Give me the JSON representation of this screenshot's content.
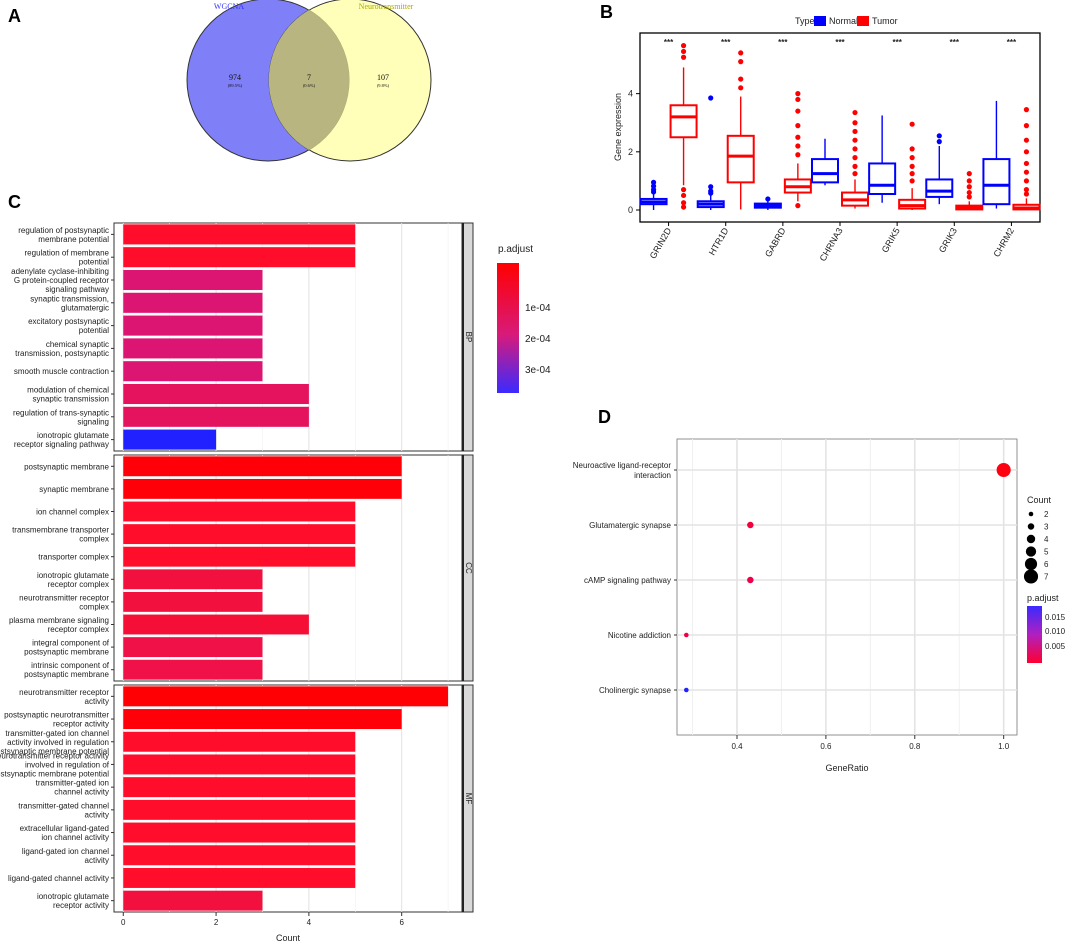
{
  "panels": {
    "A": "A",
    "B": "B",
    "C": "C",
    "D": "D"
  },
  "colors": {
    "venn_left": "#7f7ff7",
    "venn_right": "#ffff80",
    "venn_overlap": "#b8b580",
    "normal": "#0000ff",
    "tumor": "#ff0000"
  },
  "chart_data": [
    {
      "id": "A",
      "type": "venn",
      "sets": [
        {
          "name": "WGCNA",
          "only": "974",
          "percent": "(89.5%)"
        },
        {
          "name": "Neurotransmitter",
          "only": "107",
          "percent": "(9.8%)"
        }
      ],
      "intersection": {
        "value": "7",
        "percent": "(0.6%)"
      }
    },
    {
      "id": "B",
      "type": "boxplot",
      "ylabel": "Gene expression",
      "ylim": [
        -0.2,
        5.9
      ],
      "yticks": [
        0,
        2,
        4
      ],
      "legend": {
        "title": "Type",
        "entries": [
          "Normal",
          "Tumor"
        ]
      },
      "categories": [
        "GRIN2D",
        "HTR1D",
        "GABRD",
        "CHRNA3",
        "GRIK5",
        "GRIK3",
        "CHRM2"
      ],
      "significance": [
        "***",
        "***",
        "***",
        "***",
        "***",
        "***",
        "***"
      ],
      "series": [
        {
          "name": "Normal",
          "boxes": [
            {
              "low": 0,
              "q1": 0.2,
              "med": 0.28,
              "q3": 0.38,
              "high": 0.55,
              "outliers": [
                0.7,
                0.82,
                0.95,
                0.62
              ]
            },
            {
              "low": 0,
              "q1": 0.1,
              "med": 0.2,
              "q3": 0.3,
              "high": 0.5,
              "outliers": [
                3.85,
                0.8,
                0.65,
                0.58
              ]
            },
            {
              "low": 0,
              "q1": 0.08,
              "med": 0.15,
              "q3": 0.22,
              "high": 0.32,
              "outliers": [
                0.38
              ]
            },
            {
              "low": 0.85,
              "q1": 0.95,
              "med": 1.25,
              "q3": 1.75,
              "high": 2.45,
              "outliers": []
            },
            {
              "low": 0.25,
              "q1": 0.55,
              "med": 0.85,
              "q3": 1.6,
              "high": 3.25,
              "outliers": []
            },
            {
              "low": 0.2,
              "q1": 0.45,
              "med": 0.65,
              "q3": 1.05,
              "high": 2.2,
              "outliers": [
                2.55,
                2.35
              ]
            },
            {
              "low": 0.05,
              "q1": 0.2,
              "med": 0.85,
              "q3": 1.75,
              "high": 3.75,
              "outliers": []
            }
          ]
        },
        {
          "name": "Tumor",
          "boxes": [
            {
              "low": 0.85,
              "q1": 2.5,
              "med": 3.2,
              "q3": 3.6,
              "high": 4.9,
              "outliers": [
                5.65,
                5.45,
                5.25,
                0.5,
                0.25,
                0.1,
                0.7
              ]
            },
            {
              "low": 0.02,
              "q1": 0.95,
              "med": 1.85,
              "q3": 2.55,
              "high": 3.9,
              "outliers": [
                5.4,
                5.1,
                4.5,
                4.2
              ]
            },
            {
              "low": 0.3,
              "q1": 0.6,
              "med": 0.8,
              "q3": 1.05,
              "high": 1.6,
              "outliers": [
                4.0,
                3.8,
                3.4,
                2.9,
                2.5,
                2.2,
                1.9,
                0.15
              ]
            },
            {
              "low": 0.05,
              "q1": 0.15,
              "med": 0.35,
              "q3": 0.6,
              "high": 1.05,
              "outliers": [
                3.35,
                3.0,
                2.7,
                2.4,
                2.1,
                1.8,
                1.5,
                1.25
              ]
            },
            {
              "low": 0,
              "q1": 0.05,
              "med": 0.15,
              "q3": 0.35,
              "high": 0.75,
              "outliers": [
                2.95,
                2.1,
                1.8,
                1.5,
                1.25,
                1.0
              ]
            },
            {
              "low": 0,
              "q1": 0.02,
              "med": 0.07,
              "q3": 0.15,
              "high": 0.3,
              "outliers": [
                1.25,
                1.0,
                0.8,
                0.6,
                0.45
              ]
            },
            {
              "low": 0,
              "q1": 0.02,
              "med": 0.07,
              "q3": 0.18,
              "high": 0.4,
              "outliers": [
                3.45,
                2.9,
                2.4,
                2.0,
                1.6,
                1.3,
                1.0,
                0.7,
                0.55
              ]
            }
          ]
        }
      ]
    },
    {
      "id": "C",
      "type": "bar",
      "orientation": "horizontal",
      "xlabel": "Count",
      "xlim": [
        -0.2,
        7.3
      ],
      "xticks": [
        0,
        2,
        4,
        6
      ],
      "legend": {
        "title": "p.adjust",
        "ticks": [
          "1e-04",
          "2e-04",
          "3e-04"
        ]
      },
      "facets": [
        {
          "strip": "BP",
          "bars": [
            {
              "label": [
                "regulation of postsynaptic",
                "membrane potential"
              ],
              "value": 5,
              "color": "#ff0d2a"
            },
            {
              "label": [
                "regulation of membrane",
                "potential"
              ],
              "value": 5,
              "color": "#ff0d2a"
            },
            {
              "label": [
                "adenylate cyclase-inhibiting",
                "G protein-coupled receptor",
                "signaling pathway"
              ],
              "value": 3,
              "color": "#dc1572"
            },
            {
              "label": [
                "synaptic transmission,",
                "glutamatergic"
              ],
              "value": 3,
              "color": "#dc1572"
            },
            {
              "label": [
                "excitatory postsynaptic",
                "potential"
              ],
              "value": 3,
              "color": "#dc1572"
            },
            {
              "label": [
                "chemical synaptic",
                "transmission, postsynaptic"
              ],
              "value": 3,
              "color": "#dc1572"
            },
            {
              "label": [
                "smooth muscle contraction"
              ],
              "value": 3,
              "color": "#dc1572"
            },
            {
              "label": [
                "modulation of chemical",
                "synaptic transmission"
              ],
              "value": 4,
              "color": "#e5125e"
            },
            {
              "label": [
                "regulation of trans-synaptic",
                "signaling"
              ],
              "value": 4,
              "color": "#e5125e"
            },
            {
              "label": [
                "ionotropic glutamate",
                "receptor signaling pathway"
              ],
              "value": 2,
              "color": "#2121ff"
            }
          ]
        },
        {
          "strip": "CC",
          "bars": [
            {
              "label": [
                "postsynaptic membrane"
              ],
              "value": 6,
              "color": "#ff0008"
            },
            {
              "label": [
                "synaptic membrane"
              ],
              "value": 6,
              "color": "#ff0008"
            },
            {
              "label": [
                "ion channel complex"
              ],
              "value": 5,
              "color": "#ff0d2a"
            },
            {
              "label": [
                "transmembrane transporter",
                "complex"
              ],
              "value": 5,
              "color": "#ff0d2a"
            },
            {
              "label": [
                "transporter complex"
              ],
              "value": 5,
              "color": "#ff0d2a"
            },
            {
              "label": [
                "ionotropic glutamate",
                "receptor complex"
              ],
              "value": 3,
              "color": "#f2103f"
            },
            {
              "label": [
                "neurotransmitter receptor",
                "complex"
              ],
              "value": 3,
              "color": "#f2103f"
            },
            {
              "label": [
                "plasma membrane signaling",
                "receptor complex"
              ],
              "value": 4,
              "color": "#f50e35"
            },
            {
              "label": [
                "integral component of",
                "postsynaptic membrane"
              ],
              "value": 3,
              "color": "#ef1147"
            },
            {
              "label": [
                "intrinsic component of",
                "postsynaptic membrane"
              ],
              "value": 3,
              "color": "#ef1147"
            }
          ]
        },
        {
          "strip": "MF",
          "bars": [
            {
              "label": [
                "neurotransmitter receptor",
                "activity"
              ],
              "value": 7,
              "color": "#ff0004"
            },
            {
              "label": [
                "postsynaptic neurotransmitter",
                "receptor activity"
              ],
              "value": 6,
              "color": "#ff0008"
            },
            {
              "label": [
                "transmitter-gated ion channel",
                "activity involved in regulation",
                "of postsynaptic membrane potential"
              ],
              "value": 5,
              "color": "#ff0d2a"
            },
            {
              "label": [
                "neurotransmitter receptor activity",
                "involved in regulation of",
                "postsynaptic membrane potential"
              ],
              "value": 5,
              "color": "#ff0d2a"
            },
            {
              "label": [
                "transmitter-gated ion",
                "channel activity"
              ],
              "value": 5,
              "color": "#ff0d2a"
            },
            {
              "label": [
                "transmitter-gated channel",
                "activity"
              ],
              "value": 5,
              "color": "#ff0d2a"
            },
            {
              "label": [
                "extracellular ligand-gated",
                "ion channel activity"
              ],
              "value": 5,
              "color": "#ff0d2a"
            },
            {
              "label": [
                "ligand-gated ion channel",
                "activity"
              ],
              "value": 5,
              "color": "#ff0d2a"
            },
            {
              "label": [
                "ligand-gated channel activity"
              ],
              "value": 5,
              "color": "#ff0d2a"
            },
            {
              "label": [
                "ionotropic glutamate",
                "receptor activity"
              ],
              "value": 3,
              "color": "#f2103f"
            }
          ]
        }
      ]
    },
    {
      "id": "D",
      "type": "scatter",
      "xlabel": "GeneRatio",
      "xlim": [
        0.265,
        1.03
      ],
      "xticks": [
        "0.4",
        "0.6",
        "0.8",
        "1.0"
      ],
      "size_legend": {
        "title": "Count",
        "values": [
          2,
          3,
          4,
          5,
          6,
          7
        ]
      },
      "color_legend": {
        "title": "p.adjust",
        "ticks": [
          "0.015",
          "0.010",
          "0.005"
        ]
      },
      "points": [
        {
          "term": [
            "Neuroactive ligand-receptor",
            "interaction"
          ],
          "gene_ratio": 1.0,
          "count": 7,
          "color": "#ff0010"
        },
        {
          "term": [
            "Glutamatergic synapse"
          ],
          "gene_ratio": 0.43,
          "count": 3,
          "color": "#f5003a"
        },
        {
          "term": [
            "cAMP signaling pathway"
          ],
          "gene_ratio": 0.43,
          "count": 3,
          "color": "#f0004a"
        },
        {
          "term": [
            "Nicotine addiction"
          ],
          "gene_ratio": 0.286,
          "count": 2,
          "color": "#ef0045"
        },
        {
          "term": [
            "Cholinergic synapse"
          ],
          "gene_ratio": 0.286,
          "count": 2,
          "color": "#2222ff"
        }
      ]
    }
  ]
}
